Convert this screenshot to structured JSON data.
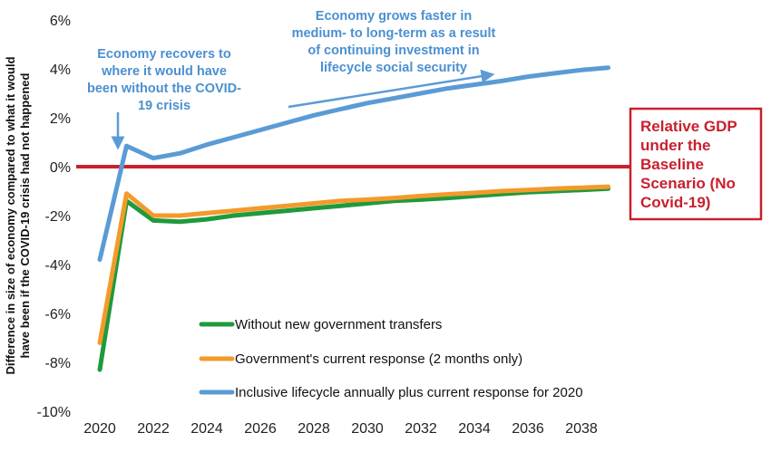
{
  "chart_data": {
    "type": "line",
    "title": "",
    "xlabel": "",
    "ylabel_lines": [
      "Difference in size of economy compared to what it would",
      "have been if the COVID-19 crisis had not happened"
    ],
    "x": [
      2020,
      2021,
      2022,
      2023,
      2024,
      2025,
      2026,
      2027,
      2028,
      2029,
      2030,
      2031,
      2032,
      2033,
      2034,
      2035,
      2036,
      2037,
      2038,
      2039
    ],
    "xlim": [
      2019.5,
      2040
    ],
    "ylim": [
      -10,
      6
    ],
    "x_ticks": [
      "2020",
      "2022",
      "2024",
      "2026",
      "2028",
      "2030",
      "2032",
      "2034",
      "2036",
      "2038"
    ],
    "y_ticks": [
      "6%",
      "4%",
      "2%",
      "0%",
      "-2%",
      "-4%",
      "-6%",
      "-8%",
      "-10%"
    ],
    "grid": false,
    "series": [
      {
        "name": "Without new government transfers",
        "color": "#1f9a3c",
        "values": [
          -8.3,
          -1.4,
          -2.2,
          -2.25,
          -2.15,
          -2.0,
          -1.9,
          -1.8,
          -1.7,
          -1.6,
          -1.5,
          -1.4,
          -1.35,
          -1.28,
          -1.2,
          -1.12,
          -1.05,
          -1.0,
          -0.95,
          -0.9
        ]
      },
      {
        "name": "Government's current response (2 months only)",
        "color": "#f39a2b",
        "values": [
          -7.2,
          -1.1,
          -2.0,
          -2.0,
          -1.9,
          -1.8,
          -1.7,
          -1.6,
          -1.5,
          -1.4,
          -1.35,
          -1.28,
          -1.2,
          -1.13,
          -1.07,
          -1.0,
          -0.95,
          -0.9,
          -0.86,
          -0.82
        ]
      },
      {
        "name": "Inclusive lifecycle annually plus current response for 2020",
        "color": "#5b9bd5",
        "values": [
          -3.8,
          0.85,
          0.35,
          0.55,
          0.9,
          1.2,
          1.5,
          1.8,
          2.1,
          2.35,
          2.6,
          2.8,
          3.0,
          3.2,
          3.35,
          3.5,
          3.68,
          3.82,
          3.95,
          4.05
        ]
      }
    ],
    "baseline": {
      "value": 0,
      "color": "#c8202e",
      "label_lines": [
        "Relative GDP",
        "under the",
        "Baseline",
        "Scenario (No",
        "Covid-19)"
      ]
    },
    "annotations": [
      {
        "id": "recovers",
        "lines": [
          "Economy recovers to",
          "where it would have",
          "been without the COVID-",
          "19 crisis"
        ]
      },
      {
        "id": "grows",
        "lines": [
          "Economy grows faster in",
          "medium- to long-term as a result",
          "of continuing investment in",
          "lifecycle social security"
        ]
      }
    ],
    "legend_position": "bottom-center-inside",
    "colors": {
      "annotation": "#4a90d0",
      "arrow": "#5b9bd5"
    }
  }
}
